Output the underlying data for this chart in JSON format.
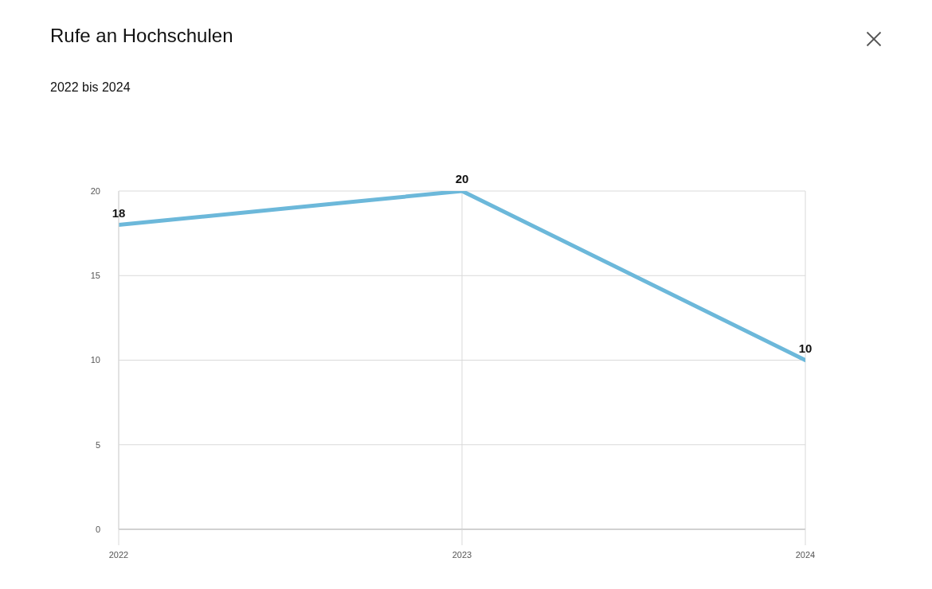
{
  "chart_data": {
    "type": "line",
    "title": "Rufe an Hochschulen",
    "subtitle": "2022 bis 2024",
    "categories": [
      "2022",
      "2023",
      "2024"
    ],
    "values": [
      18,
      20,
      10
    ],
    "color": "#6cb8da",
    "ylim": [
      0,
      20
    ],
    "yticks": [
      0,
      5,
      10,
      15,
      20
    ],
    "grid": true,
    "data_labels": true,
    "marker": "none",
    "line_style": "solid"
  }
}
